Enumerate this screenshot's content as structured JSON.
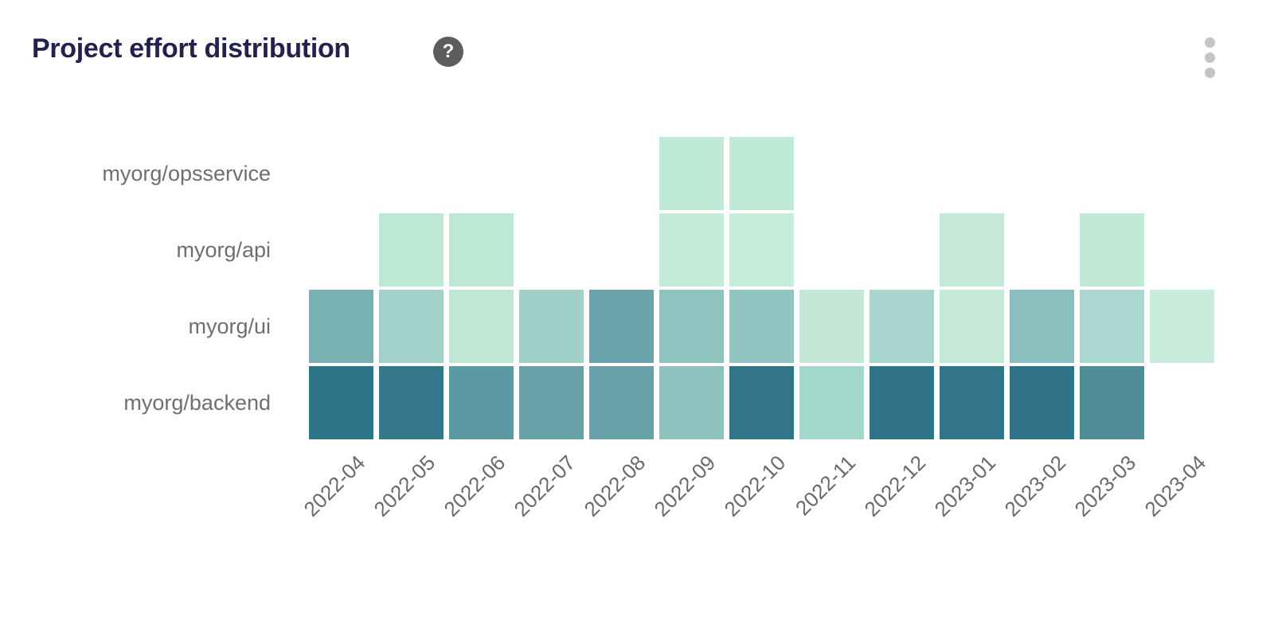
{
  "header": {
    "title": "Project effort distribution",
    "help_icon": "question-mark-icon",
    "help_glyph": "?",
    "menu_icon": "kebab-menu-icon"
  },
  "colors": {
    "title_text": "#23224e",
    "row_label_text": "#6f6f6f",
    "column_label_text": "#696969",
    "help_icon_bg": "#5d5d5d",
    "menu_dot": "#c4c4c4",
    "background": "#ffffff"
  },
  "chart_data": {
    "type": "heatmap",
    "title": "Project effort distribution",
    "x_categories": [
      "2022-04",
      "2022-05",
      "2022-06",
      "2022-07",
      "2022-08",
      "2022-09",
      "2022-10",
      "2022-11",
      "2022-12",
      "2023-01",
      "2023-02",
      "2023-03",
      "2023-04"
    ],
    "y_categories": [
      "myorg/opsservice",
      "myorg/api",
      "myorg/ui",
      "myorg/backend"
    ],
    "legend": "none",
    "grid_lines": "off",
    "x_label_rotation_deg": -45,
    "color_scale": {
      "low": "#c7ecdc",
      "high": "#2f7389",
      "meaning": "relative effort (darker = more effort)"
    },
    "cell_colors": [
      [
        null,
        null,
        null,
        null,
        null,
        "#c0ead8",
        "#c0ead8",
        null,
        null,
        null,
        null,
        null,
        null
      ],
      [
        null,
        "#bde8d6",
        "#bde8d6",
        null,
        null,
        "#c3ebd9",
        "#c6ecda",
        null,
        null,
        "#c4e9d8",
        null,
        "#c2e8d7",
        null
      ],
      [
        "#7ab1b4",
        "#a2d1ca",
        "#c0e7d6",
        "#a1d0c9",
        "#68a4aa",
        "#8ec3c0",
        "#92c5c1",
        "#c3e8d7",
        "#a7d5ce",
        "#c4e9d8",
        "#89bfbe",
        "#aad7cf",
        "#c7ecdc"
      ],
      [
        "#2f7489",
        "#35788b",
        "#5c9aa3",
        "#67a0a7",
        "#68a1a8",
        "#8cc1be",
        "#32758a",
        "#a5d8cd",
        "#31748a",
        "#32758b",
        "#307389",
        "#4f8e99",
        null
      ]
    ],
    "intensity_estimate": [
      [
        null,
        null,
        null,
        null,
        null,
        0.1,
        0.1,
        null,
        null,
        null,
        null,
        null,
        null
      ],
      [
        null,
        0.1,
        0.1,
        null,
        null,
        0.1,
        0.1,
        null,
        null,
        0.1,
        null,
        0.1,
        null
      ],
      [
        0.45,
        0.3,
        0.12,
        0.3,
        0.55,
        0.38,
        0.36,
        0.12,
        0.28,
        0.12,
        0.42,
        0.27,
        0.1
      ],
      [
        0.85,
        0.83,
        0.6,
        0.55,
        0.55,
        0.38,
        0.85,
        0.28,
        0.87,
        0.85,
        0.87,
        0.7,
        null
      ]
    ]
  }
}
